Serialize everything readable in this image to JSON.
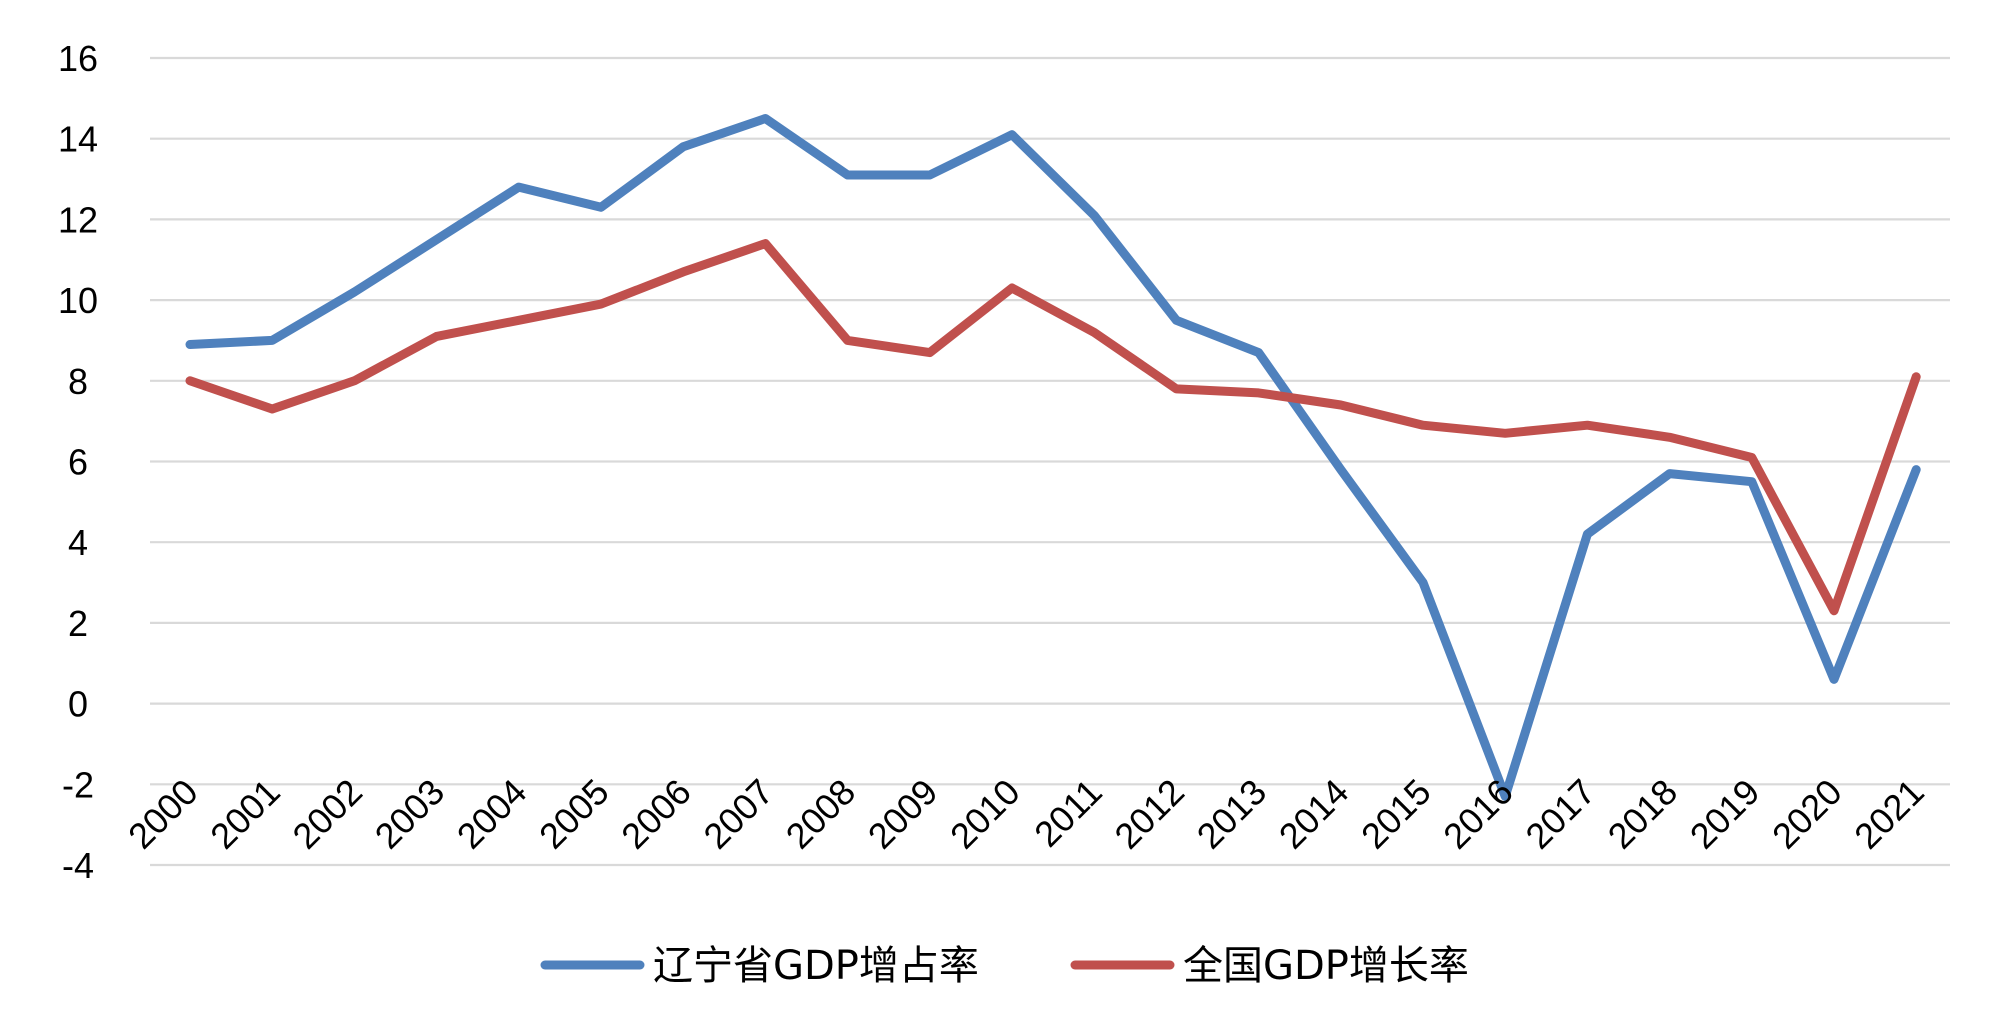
{
  "chart_data": {
    "type": "line",
    "title": "",
    "xlabel": "",
    "ylabel": "",
    "ylim": [
      -4,
      16
    ],
    "yticks": [
      -4,
      -2,
      0,
      2,
      4,
      6,
      8,
      10,
      12,
      14,
      16
    ],
    "grid": true,
    "legend_position": "bottom",
    "categories": [
      "2000",
      "2001",
      "2002",
      "2003",
      "2004",
      "2005",
      "2006",
      "2007",
      "2008",
      "2009",
      "2010",
      "2011",
      "2012",
      "2013",
      "2014",
      "2015",
      "2016",
      "2017",
      "2018",
      "2019",
      "2020",
      "2021"
    ],
    "series": [
      {
        "name": "辽宁省GDP增占率",
        "color": "#4f81bd",
        "values": [
          8.9,
          9.0,
          10.2,
          11.5,
          12.8,
          12.3,
          13.8,
          14.5,
          13.1,
          13.1,
          14.1,
          12.1,
          9.5,
          8.7,
          5.8,
          3.0,
          -2.3,
          4.2,
          5.7,
          5.5,
          0.6,
          5.8
        ]
      },
      {
        "name": "全国GDP增长率",
        "color": "#c0504d",
        "values": [
          8.0,
          7.3,
          8.0,
          9.1,
          9.5,
          9.9,
          10.7,
          11.4,
          9.0,
          8.7,
          10.3,
          9.2,
          7.8,
          7.7,
          7.4,
          6.9,
          6.7,
          6.9,
          6.6,
          6.1,
          2.3,
          8.1
        ]
      }
    ]
  }
}
